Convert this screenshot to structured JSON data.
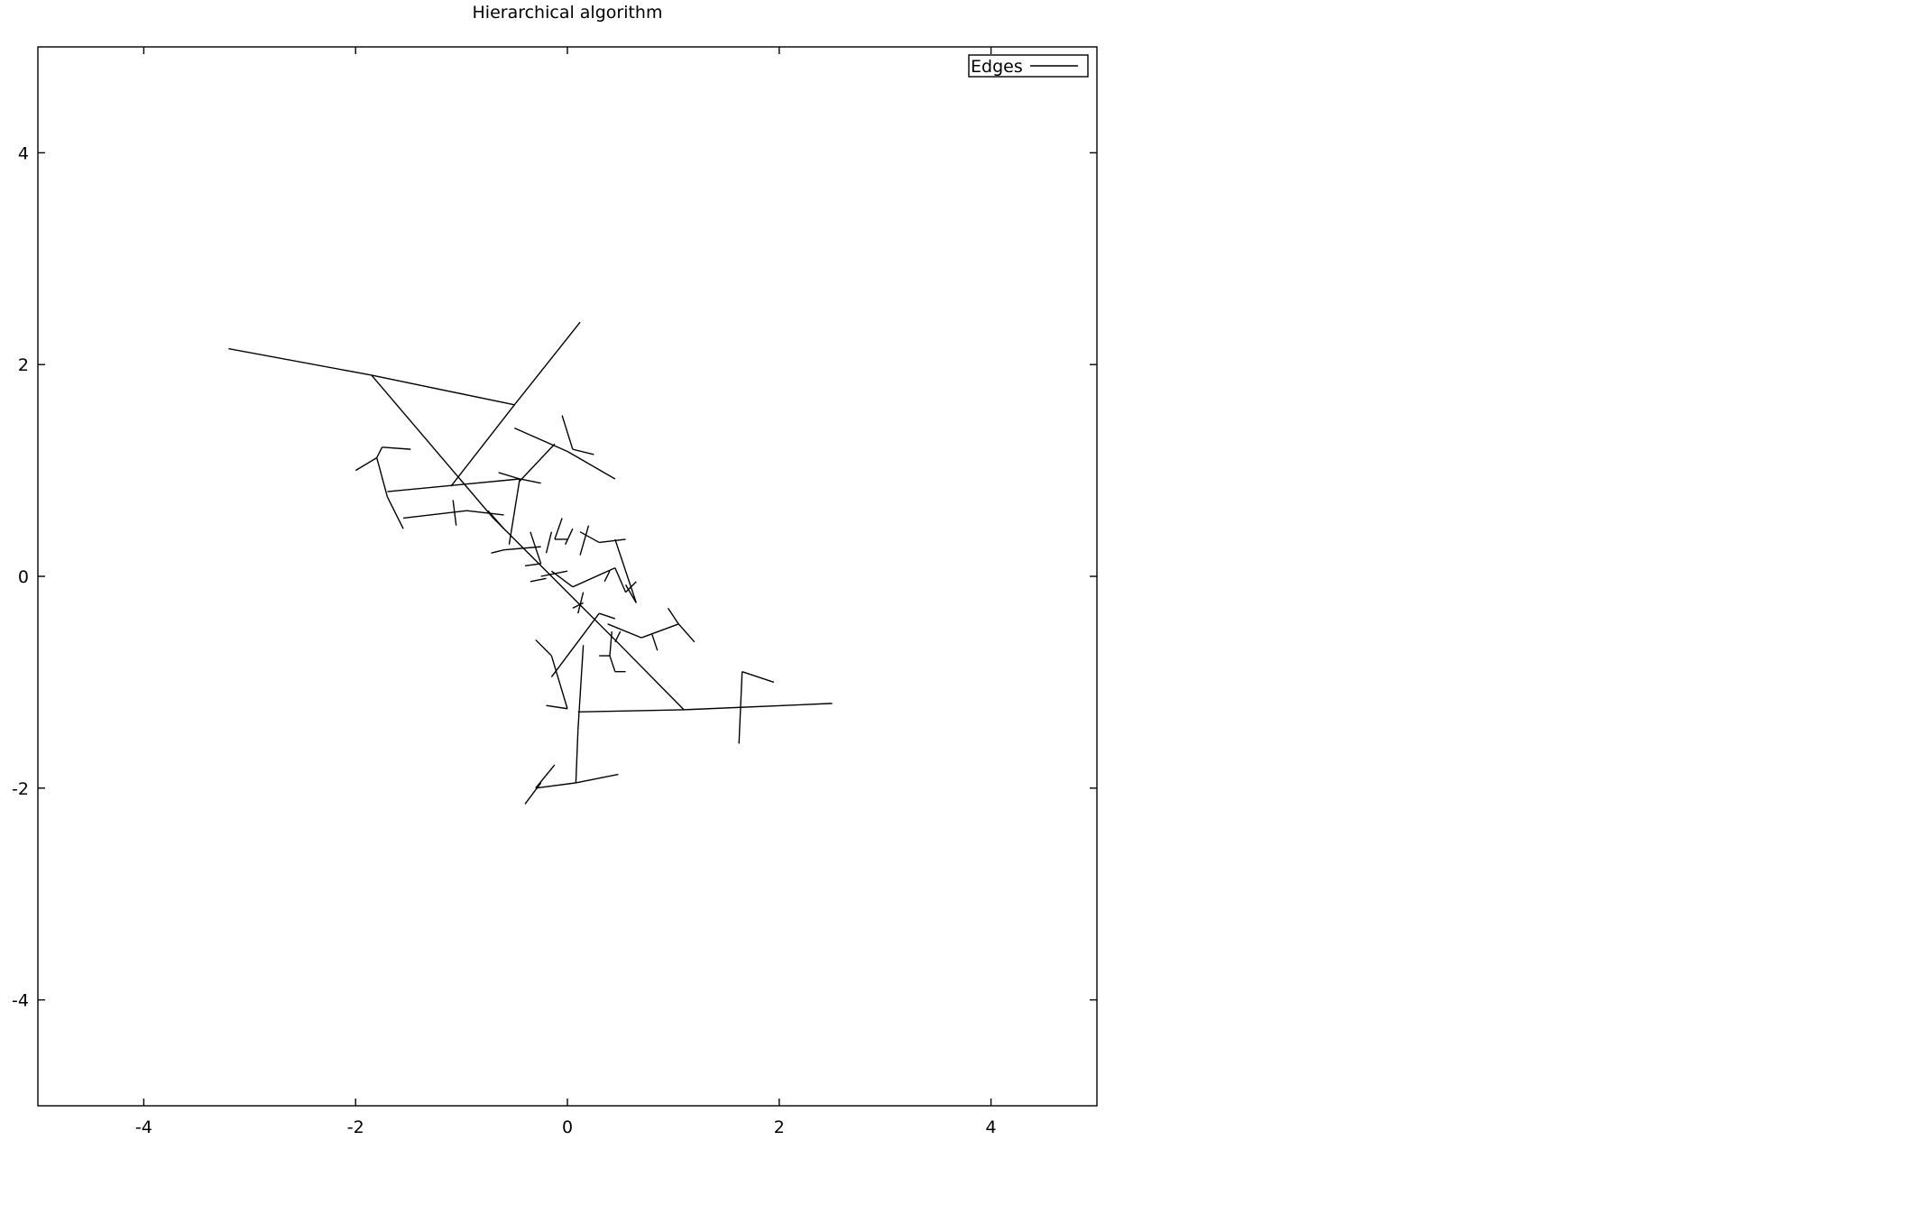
{
  "chart_data": {
    "type": "line",
    "title": "Hierarchical algorithm",
    "xlabel": "",
    "ylabel": "",
    "xlim": [
      -5,
      5
    ],
    "ylim": [
      -5,
      5
    ],
    "x_ticks": [
      -4,
      -2,
      0,
      2,
      4
    ],
    "y_ticks": [
      -4,
      -2,
      0,
      2,
      4
    ],
    "grid": false,
    "legend_position": "top-right",
    "series": [
      {
        "name": "Edges",
        "color": "#000000",
        "segments": [
          [
            [
              -3.2,
              2.15
            ],
            [
              -1.85,
              1.9
            ]
          ],
          [
            [
              -1.85,
              1.9
            ],
            [
              -0.5,
              1.62
            ]
          ],
          [
            [
              0.12,
              2.4
            ],
            [
              -0.5,
              1.62
            ]
          ],
          [
            [
              -0.5,
              1.62
            ],
            [
              -1.1,
              0.85
            ]
          ],
          [
            [
              -1.85,
              1.9
            ],
            [
              -0.7,
              0.55
            ]
          ],
          [
            [
              -0.7,
              0.55
            ],
            [
              0.45,
              -0.6
            ]
          ],
          [
            [
              0.45,
              -0.6
            ],
            [
              1.1,
              -1.26
            ]
          ],
          [
            [
              -0.5,
              1.4
            ],
            [
              0.0,
              1.18
            ]
          ],
          [
            [
              0.0,
              1.18
            ],
            [
              0.45,
              0.92
            ]
          ],
          [
            [
              -0.05,
              1.52
            ],
            [
              0.05,
              1.2
            ]
          ],
          [
            [
              0.05,
              1.2
            ],
            [
              0.25,
              1.15
            ]
          ],
          [
            [
              -0.12,
              1.25
            ],
            [
              -0.45,
              0.9
            ]
          ],
          [
            [
              -1.8,
              1.12
            ],
            [
              -1.7,
              0.75
            ]
          ],
          [
            [
              -1.7,
              0.75
            ],
            [
              -1.55,
              0.45
            ]
          ],
          [
            [
              -2.0,
              1.0
            ],
            [
              -1.8,
              1.12
            ]
          ],
          [
            [
              -1.8,
              1.12
            ],
            [
              -1.75,
              1.22
            ]
          ],
          [
            [
              -1.75,
              1.22
            ],
            [
              -1.48,
              1.2
            ]
          ],
          [
            [
              -1.7,
              0.8
            ],
            [
              -0.45,
              0.92
            ]
          ],
          [
            [
              -0.45,
              0.92
            ],
            [
              -0.25,
              0.88
            ]
          ],
          [
            [
              -0.65,
              0.98
            ],
            [
              -0.45,
              0.92
            ]
          ],
          [
            [
              -0.45,
              0.92
            ],
            [
              -0.55,
              0.3
            ]
          ],
          [
            [
              -1.55,
              0.55
            ],
            [
              -0.95,
              0.62
            ]
          ],
          [
            [
              -0.95,
              0.62
            ],
            [
              -0.6,
              0.58
            ]
          ],
          [
            [
              -1.08,
              0.72
            ],
            [
              -1.05,
              0.48
            ]
          ],
          [
            [
              -0.75,
              0.62
            ],
            [
              -0.6,
              0.45
            ]
          ],
          [
            [
              -0.6,
              0.25
            ],
            [
              -0.25,
              0.28
            ]
          ],
          [
            [
              -0.72,
              0.22
            ],
            [
              -0.6,
              0.25
            ]
          ],
          [
            [
              -0.35,
              0.42
            ],
            [
              -0.25,
              0.12
            ]
          ],
          [
            [
              -0.25,
              0.12
            ],
            [
              -0.4,
              0.1
            ]
          ],
          [
            [
              -0.15,
              0.42
            ],
            [
              -0.2,
              0.22
            ]
          ],
          [
            [
              -0.05,
              0.55
            ],
            [
              -0.12,
              0.35
            ]
          ],
          [
            [
              -0.12,
              0.35
            ],
            [
              0.0,
              0.35
            ]
          ],
          [
            [
              0.12,
              0.42
            ],
            [
              0.3,
              0.32
            ]
          ],
          [
            [
              0.3,
              0.32
            ],
            [
              0.55,
              0.35
            ]
          ],
          [
            [
              0.2,
              0.48
            ],
            [
              0.12,
              0.2
            ]
          ],
          [
            [
              0.45,
              0.35
            ],
            [
              0.5,
              0.2
            ]
          ],
          [
            [
              0.5,
              0.2
            ],
            [
              0.65,
              -0.25
            ]
          ],
          [
            [
              0.65,
              -0.25
            ],
            [
              0.55,
              -0.08
            ]
          ],
          [
            [
              -0.15,
              0.05
            ],
            [
              0.05,
              -0.1
            ]
          ],
          [
            [
              0.05,
              -0.1
            ],
            [
              0.45,
              0.08
            ]
          ],
          [
            [
              0.45,
              0.08
            ],
            [
              0.55,
              -0.15
            ]
          ],
          [
            [
              0.15,
              -0.15
            ],
            [
              0.1,
              -0.35
            ]
          ],
          [
            [
              -0.3,
              -0.6
            ],
            [
              -0.15,
              -0.75
            ]
          ],
          [
            [
              -0.15,
              -0.75
            ],
            [
              0.0,
              -1.25
            ]
          ],
          [
            [
              0.0,
              -1.25
            ],
            [
              -0.2,
              -1.22
            ]
          ],
          [
            [
              -0.15,
              -0.95
            ],
            [
              0.3,
              -0.35
            ]
          ],
          [
            [
              0.3,
              -0.35
            ],
            [
              0.45,
              -0.4
            ]
          ],
          [
            [
              0.15,
              -0.65
            ],
            [
              0.1,
              -1.45
            ]
          ],
          [
            [
              0.1,
              -1.45
            ],
            [
              0.08,
              -1.95
            ]
          ],
          [
            [
              0.08,
              -1.95
            ],
            [
              0.48,
              -1.87
            ]
          ],
          [
            [
              0.08,
              -1.95
            ],
            [
              -0.3,
              -2.0
            ]
          ],
          [
            [
              -0.3,
              -2.0
            ],
            [
              -0.12,
              -1.78
            ]
          ],
          [
            [
              -0.4,
              -2.15
            ],
            [
              -0.25,
              -1.95
            ]
          ],
          [
            [
              0.1,
              -1.28
            ],
            [
              1.1,
              -1.26
            ]
          ],
          [
            [
              1.1,
              -1.26
            ],
            [
              2.5,
              -1.2
            ]
          ],
          [
            [
              1.65,
              -0.9
            ],
            [
              1.95,
              -1.0
            ]
          ],
          [
            [
              1.65,
              -0.9
            ],
            [
              1.62,
              -1.58
            ]
          ],
          [
            [
              0.38,
              -0.45
            ],
            [
              0.7,
              -0.58
            ]
          ],
          [
            [
              0.7,
              -0.58
            ],
            [
              1.05,
              -0.45
            ]
          ],
          [
            [
              1.05,
              -0.45
            ],
            [
              1.2,
              -0.62
            ]
          ],
          [
            [
              1.05,
              -0.45
            ],
            [
              0.95,
              -0.3
            ]
          ],
          [
            [
              0.8,
              -0.55
            ],
            [
              0.85,
              -0.7
            ]
          ],
          [
            [
              0.42,
              -0.52
            ],
            [
              0.4,
              -0.75
            ]
          ],
          [
            [
              0.4,
              -0.75
            ],
            [
              0.3,
              -0.75
            ]
          ],
          [
            [
              0.4,
              -0.75
            ],
            [
              0.45,
              -0.9
            ]
          ],
          [
            [
              0.45,
              -0.9
            ],
            [
              0.55,
              -0.9
            ]
          ],
          [
            [
              0.45,
              -0.62
            ],
            [
              0.5,
              -0.52
            ]
          ],
          [
            [
              0.55,
              -0.15
            ],
            [
              0.65,
              -0.05
            ]
          ],
          [
            [
              -0.02,
              0.3
            ],
            [
              0.05,
              0.45
            ]
          ],
          [
            [
              -0.25,
              0.0
            ],
            [
              0.0,
              0.05
            ]
          ],
          [
            [
              -0.35,
              -0.05
            ],
            [
              -0.2,
              -0.02
            ]
          ],
          [
            [
              0.35,
              -0.05
            ],
            [
              0.4,
              0.05
            ]
          ],
          [
            [
              0.05,
              -0.3
            ],
            [
              0.15,
              -0.25
            ]
          ]
        ]
      }
    ]
  }
}
